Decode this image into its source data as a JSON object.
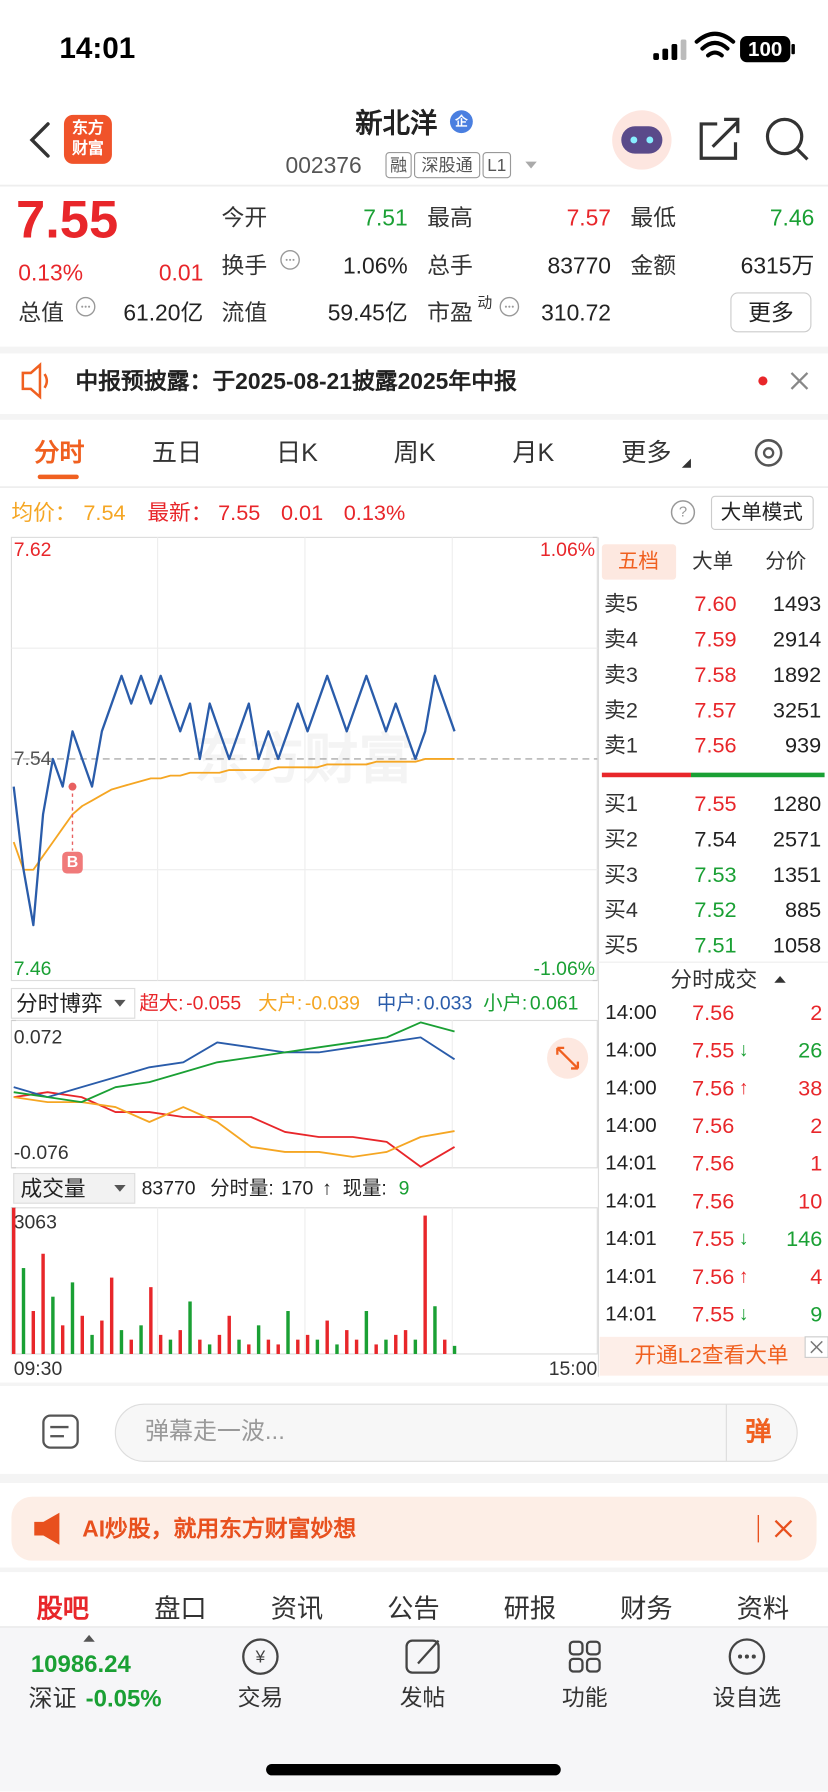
{
  "status_bar": {
    "time": "14:01",
    "battery": "100"
  },
  "header": {
    "logo": [
      "东方",
      "财富"
    ],
    "title": "新北洋",
    "title_badge": "企",
    "code": "002376",
    "tags": [
      "融",
      "深股通",
      "L1"
    ]
  },
  "quote": {
    "price": "7.55",
    "change_pct": "0.13%",
    "change": "0.01",
    "fields": [
      {
        "label": "今开",
        "value": "7.51",
        "color": "#1aa034"
      },
      {
        "label": "最高",
        "value": "7.57",
        "color": "#e8262a"
      },
      {
        "label": "最低",
        "value": "7.46",
        "color": "#1aa034"
      },
      {
        "label": "换手",
        "value": "1.06%"
      },
      {
        "label": "总手",
        "value": "83770"
      },
      {
        "label": "金额",
        "value": "6315万"
      },
      {
        "label": "总值",
        "value": "61.20亿"
      },
      {
        "label": "流值",
        "value": "59.45亿"
      },
      {
        "label": "市盈",
        "label_sup": "动",
        "value": "310.72"
      }
    ],
    "more_button": "更多"
  },
  "notice": "中报预披露：于2025-08-21披露2025年中报",
  "tabs": [
    "分时",
    "五日",
    "日K",
    "周K",
    "月K",
    "更多"
  ],
  "chart_info": {
    "avg_label": "均价：",
    "avg": "7.54",
    "latest_label": "最新：",
    "latest": "7.55",
    "change": "0.01",
    "change_pct": "0.13%",
    "mode_button": "大单模式"
  },
  "chart_data": [
    {
      "type": "line",
      "watermark": "东方财富",
      "ylim": [
        7.46,
        7.62
      ],
      "yticks": [
        7.46,
        7.54,
        7.62
      ],
      "y2lim": [
        -1.06,
        1.06
      ],
      "y2ticks": [
        {
          "value": -1.06,
          "label": "-1.06%"
        },
        {
          "value": 1.06,
          "label": "1.06%"
        }
      ],
      "series": [
        {
          "color": "#2a5caa",
          "values": [
            7.53,
            7.5,
            7.48,
            7.52,
            7.54,
            7.53,
            7.55,
            7.54,
            7.53,
            7.55,
            7.56,
            7.57,
            7.56,
            7.57,
            7.56,
            7.57,
            7.56,
            7.55,
            7.56,
            7.54,
            7.56,
            7.55,
            7.54,
            7.55,
            7.56,
            7.54,
            7.55,
            7.54,
            7.55,
            7.56,
            7.55,
            7.56,
            7.57,
            7.56,
            7.55,
            7.56,
            7.57,
            7.56,
            7.55,
            7.56,
            7.55,
            7.54,
            7.55,
            7.57,
            7.56,
            7.55
          ]
        },
        {
          "color": "#f5a623",
          "values": [
            7.51,
            7.5,
            7.5,
            7.505,
            7.51,
            7.515,
            7.52,
            7.523,
            7.525,
            7.527,
            7.529,
            7.53,
            7.531,
            7.532,
            7.533,
            7.533,
            7.534,
            7.534,
            7.535,
            7.535,
            7.535,
            7.535,
            7.536,
            7.536,
            7.536,
            7.536,
            7.536,
            7.537,
            7.537,
            7.537,
            7.537,
            7.537,
            7.538,
            7.538,
            7.538,
            7.538,
            7.538,
            7.539,
            7.539,
            7.539,
            7.539,
            7.539,
            7.54,
            7.54,
            7.54,
            7.54
          ]
        }
      ],
      "marker": {
        "label": "B",
        "x": 6,
        "value": 7.53
      }
    },
    {
      "type": "line",
      "title": "分时博弈",
      "ylim": [
        -0.076,
        0.072
      ],
      "yticks": [
        -0.076,
        0.072
      ],
      "series": [
        {
          "name": "超大:",
          "color": "#e8262a",
          "values": [
            -0.005,
            0,
            -0.005,
            -0.02,
            -0.02,
            -0.025,
            -0.025,
            -0.025,
            -0.04,
            -0.045,
            -0.045,
            -0.05,
            -0.075,
            -0.055
          ]
        },
        {
          "name": "大户:",
          "color": "#f5a623",
          "values": [
            -0.005,
            -0.01,
            -0.01,
            -0.015,
            -0.03,
            -0.015,
            -0.03,
            -0.055,
            -0.06,
            -0.06,
            -0.065,
            -0.06,
            -0.045,
            -0.039
          ]
        },
        {
          "name": "中户:",
          "color": "#2a5caa",
          "values": [
            0.005,
            -0.005,
            0.005,
            0.015,
            0.025,
            0.03,
            0.05,
            0.045,
            0.04,
            0.04,
            0.045,
            0.05,
            0.055,
            0.033
          ]
        },
        {
          "name": "小户:",
          "color": "#1aa034",
          "values": [
            0,
            -0.005,
            -0.01,
            0.005,
            0.01,
            0.02,
            0.03,
            0.035,
            0.04,
            0.045,
            0.05,
            0.055,
            0.07,
            0.061
          ]
        }
      ]
    },
    {
      "type": "bar",
      "title": "成交量",
      "info": {
        "total": "83770",
        "minute_label": "分时量:",
        "minute": "170",
        "arrow": "↑",
        "current_label": "现量:",
        "current": "9"
      },
      "ylim": [
        0,
        3063
      ],
      "yticks": [
        3063
      ],
      "x_labels": [
        "09:30",
        "15:00"
      ],
      "values": [
        3063,
        1800,
        900,
        2100,
        1200,
        600,
        1500,
        800,
        400,
        700,
        1600,
        500,
        300,
        600,
        1400,
        400,
        300,
        500,
        1100,
        300,
        200,
        400,
        800,
        300,
        200,
        600,
        300,
        200,
        900,
        300,
        400,
        300,
        700,
        200,
        500,
        300,
        900,
        200,
        300,
        400,
        500,
        300,
        2900,
        1000,
        300,
        170
      ],
      "up": [
        true,
        false,
        true,
        true,
        false,
        true,
        false,
        true,
        false,
        true,
        true,
        false,
        true,
        false,
        true,
        true,
        false,
        true,
        false,
        true,
        false,
        true,
        true,
        false,
        true,
        false,
        true,
        true,
        false,
        true,
        true,
        false,
        true,
        false,
        true,
        true,
        false,
        true,
        false,
        true,
        true,
        false,
        true,
        false,
        true,
        false
      ],
      "colors": {
        "up": "#e8262a",
        "down": "#1aa034"
      }
    }
  ],
  "order_book": {
    "tabs": [
      "五档",
      "大单",
      "分价"
    ],
    "asks": [
      {
        "label": "卖5",
        "price": "7.60",
        "volume": "1493"
      },
      {
        "label": "卖4",
        "price": "7.59",
        "volume": "2914"
      },
      {
        "label": "卖3",
        "price": "7.58",
        "volume": "1892"
      },
      {
        "label": "卖2",
        "price": "7.57",
        "volume": "3251"
      },
      {
        "label": "卖1",
        "price": "7.56",
        "volume": "939"
      }
    ],
    "bids": [
      {
        "label": "买1",
        "price": "7.55",
        "volume": "1280"
      },
      {
        "label": "买2",
        "price": "7.54",
        "volume": "2571"
      },
      {
        "label": "买3",
        "price": "7.53",
        "volume": "1351"
      },
      {
        "label": "买4",
        "price": "7.52",
        "volume": "885"
      },
      {
        "label": "买5",
        "price": "7.51",
        "volume": "1058"
      }
    ]
  },
  "trades": {
    "title": "分时成交",
    "rows": [
      {
        "time": "14:00",
        "price": "7.56",
        "volume": "2",
        "side": "buy"
      },
      {
        "time": "14:00",
        "price": "7.55",
        "arrow": "↓",
        "volume": "26",
        "side": "sell"
      },
      {
        "time": "14:00",
        "price": "7.56",
        "arrow": "↑",
        "volume": "38",
        "side": "buy"
      },
      {
        "time": "14:00",
        "price": "7.56",
        "volume": "2",
        "side": "buy"
      },
      {
        "time": "14:01",
        "price": "7.56",
        "volume": "1",
        "side": "buy"
      },
      {
        "time": "14:01",
        "price": "7.56",
        "volume": "10",
        "side": "buy"
      },
      {
        "time": "14:01",
        "price": "7.55",
        "arrow": "↓",
        "volume": "146",
        "side": "sell"
      },
      {
        "time": "14:01",
        "price": "7.56",
        "arrow": "↑",
        "volume": "4",
        "side": "buy"
      },
      {
        "time": "14:01",
        "price": "7.55",
        "arrow": "↓",
        "volume": "9",
        "side": "sell"
      }
    ]
  },
  "l2_banner": "开通L2查看大单",
  "danmu": {
    "placeholder": "弹幕走一波...",
    "button": "弹"
  },
  "ad": "AI炒股，就用东方财富妙想",
  "section_tabs": [
    "股吧",
    "盘口",
    "资讯",
    "公告",
    "研报",
    "财务",
    "资料"
  ],
  "bottom_nav": {
    "index_value": "10986.24",
    "index_name": "深证",
    "index_change": "-0.05%",
    "items": [
      "交易",
      "发帖",
      "功能",
      "设自选"
    ]
  }
}
